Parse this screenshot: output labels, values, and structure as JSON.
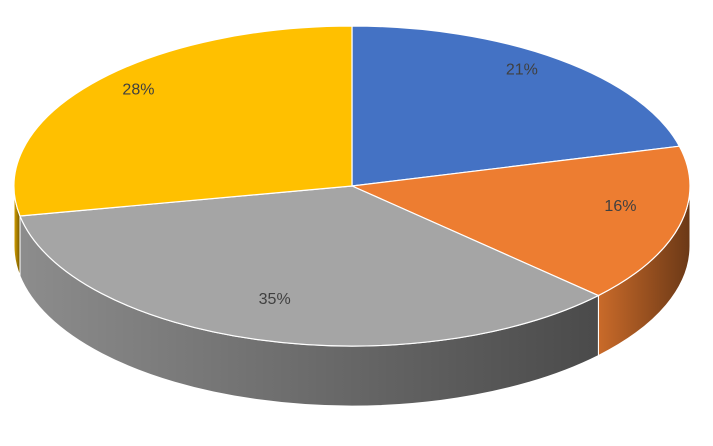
{
  "chart_data": {
    "type": "pie",
    "values": [
      21,
      16,
      35,
      28
    ],
    "value_labels": [
      "21%",
      "16%",
      "35%",
      "28%"
    ],
    "colors": [
      "#4472c4",
      "#ed7d31",
      "#a5a5a5",
      "#ffc000"
    ]
  }
}
